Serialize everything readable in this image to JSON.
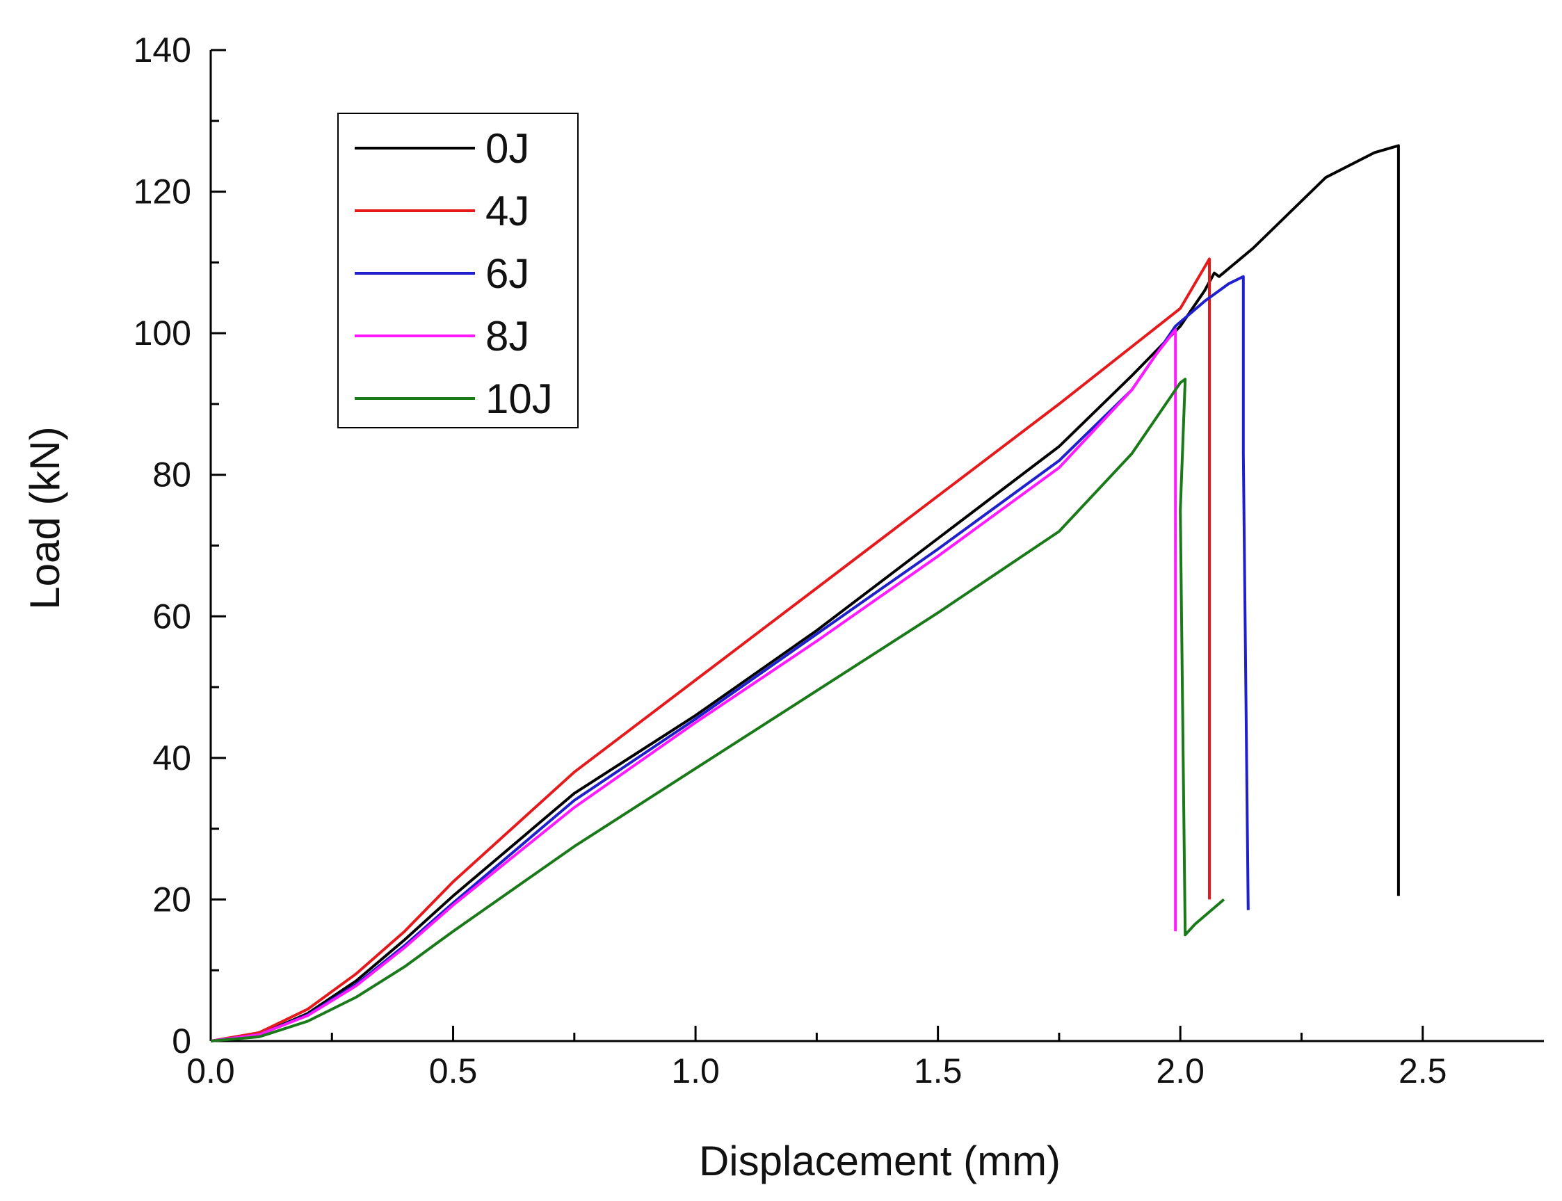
{
  "chart_data": {
    "type": "line",
    "title": "",
    "xlabel": "Displacement (mm)",
    "ylabel": "Load (kN)",
    "xlim": [
      0,
      2.75
    ],
    "ylim": [
      0,
      140
    ],
    "x_ticks": [
      "0.0",
      "0.5",
      "1.0",
      "1.5",
      "2.0",
      "2.5"
    ],
    "y_ticks": [
      "0",
      "20",
      "40",
      "60",
      "80",
      "100",
      "120",
      "140"
    ],
    "grid": false,
    "legend_position": "top-left",
    "series": [
      {
        "name": "0J",
        "color": "#000000",
        "points": [
          [
            0,
            0
          ],
          [
            0.1,
            0.9
          ],
          [
            0.2,
            3.9
          ],
          [
            0.3,
            8.5
          ],
          [
            0.4,
            14.3
          ],
          [
            0.5,
            20.5
          ],
          [
            0.75,
            35
          ],
          [
            1.0,
            46
          ],
          [
            1.25,
            58
          ],
          [
            1.5,
            71
          ],
          [
            1.75,
            84
          ],
          [
            1.9,
            94
          ],
          [
            2.0,
            101
          ],
          [
            2.05,
            106
          ],
          [
            2.07,
            108.5
          ],
          [
            2.08,
            108
          ],
          [
            2.15,
            112
          ],
          [
            2.3,
            122
          ],
          [
            2.4,
            125.5
          ],
          [
            2.45,
            126.5
          ],
          [
            2.45,
            100
          ],
          [
            2.45,
            20.5
          ]
        ]
      },
      {
        "name": "4J",
        "color": "#e41a1c",
        "points": [
          [
            0,
            0
          ],
          [
            0.1,
            1.2
          ],
          [
            0.2,
            4.5
          ],
          [
            0.3,
            9.5
          ],
          [
            0.4,
            15.5
          ],
          [
            0.5,
            22.5
          ],
          [
            0.75,
            38
          ],
          [
            1.0,
            51
          ],
          [
            1.25,
            64
          ],
          [
            1.5,
            77
          ],
          [
            1.75,
            90
          ],
          [
            2.0,
            103.5
          ],
          [
            2.06,
            110.5
          ],
          [
            2.06,
            20
          ]
        ]
      },
      {
        "name": "6J",
        "color": "#1f1fcc",
        "points": [
          [
            0,
            0
          ],
          [
            0.1,
            0.9
          ],
          [
            0.2,
            3.7
          ],
          [
            0.3,
            8
          ],
          [
            0.4,
            13.5
          ],
          [
            0.5,
            19.5
          ],
          [
            0.75,
            34
          ],
          [
            1.0,
            45.5
          ],
          [
            1.25,
            57.5
          ],
          [
            1.5,
            69.5
          ],
          [
            1.75,
            82
          ],
          [
            1.9,
            92
          ],
          [
            1.99,
            101
          ],
          [
            2.05,
            104.5
          ],
          [
            2.1,
            107
          ],
          [
            2.13,
            108
          ],
          [
            2.13,
            83
          ],
          [
            2.14,
            18.5
          ]
        ]
      },
      {
        "name": "8J",
        "color": "#ff1aff",
        "points": [
          [
            0,
            0
          ],
          [
            0.1,
            0.9
          ],
          [
            0.2,
            3.6
          ],
          [
            0.3,
            7.8
          ],
          [
            0.4,
            13.2
          ],
          [
            0.5,
            19.2
          ],
          [
            0.75,
            33
          ],
          [
            1.0,
            45
          ],
          [
            1.25,
            56.5
          ],
          [
            1.5,
            68.5
          ],
          [
            1.75,
            81
          ],
          [
            1.9,
            92
          ],
          [
            1.95,
            97
          ],
          [
            1.99,
            100.5
          ],
          [
            1.99,
            15.5
          ]
        ]
      },
      {
        "name": "10J",
        "color": "#1a7a1a",
        "points": [
          [
            0,
            0
          ],
          [
            0.1,
            0.6
          ],
          [
            0.2,
            2.8
          ],
          [
            0.3,
            6.2
          ],
          [
            0.4,
            10.5
          ],
          [
            0.5,
            15.5
          ],
          [
            0.75,
            27.5
          ],
          [
            1.0,
            38.5
          ],
          [
            1.25,
            49.5
          ],
          [
            1.5,
            60.5
          ],
          [
            1.75,
            72
          ],
          [
            1.9,
            83
          ],
          [
            1.97,
            90
          ],
          [
            2.0,
            93
          ],
          [
            2.01,
            93.5
          ],
          [
            2.0,
            75
          ],
          [
            2.01,
            15
          ],
          [
            2.03,
            16.5
          ],
          [
            2.09,
            20
          ]
        ]
      }
    ]
  }
}
